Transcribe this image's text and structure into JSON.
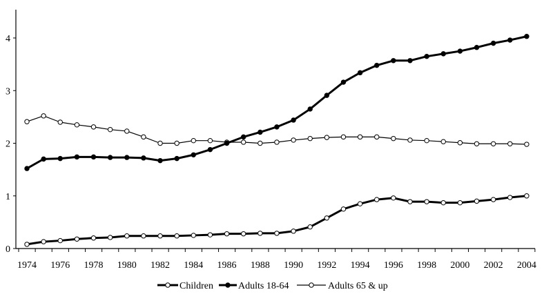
{
  "chart_data": {
    "type": "line",
    "title": "",
    "xlabel": "",
    "ylabel": "",
    "x": [
      1974,
      1975,
      1976,
      1977,
      1978,
      1979,
      1980,
      1981,
      1982,
      1983,
      1984,
      1985,
      1986,
      1987,
      1988,
      1989,
      1990,
      1991,
      1992,
      1993,
      1994,
      1995,
      1996,
      1997,
      1998,
      1999,
      2000,
      2001,
      2002,
      2003,
      2004
    ],
    "xticks": [
      "1974",
      "1976",
      "1978",
      "1980",
      "1982",
      "1984",
      "1986",
      "1988",
      "1990",
      "1992",
      "1994",
      "1996",
      "1998",
      "2000",
      "2002",
      "2004"
    ],
    "yticks": [
      "0",
      "1",
      "2",
      "3",
      "4"
    ],
    "ylim": [
      0,
      4.4
    ],
    "xlim": [
      1973.35,
      2004.5
    ],
    "grid": false,
    "legend_position": "bottom-center",
    "series": [
      {
        "name": "Children",
        "style": "thick-open",
        "values": [
          0.08,
          0.13,
          0.15,
          0.18,
          0.2,
          0.21,
          0.24,
          0.24,
          0.24,
          0.24,
          0.25,
          0.26,
          0.28,
          0.28,
          0.29,
          0.29,
          0.33,
          0.41,
          0.58,
          0.75,
          0.85,
          0.93,
          0.96,
          0.89,
          0.89,
          0.87,
          0.87,
          0.9,
          0.93,
          0.97,
          1.0
        ]
      },
      {
        "name": "Adults 18-64",
        "style": "thick-filled",
        "values": [
          1.52,
          1.7,
          1.71,
          1.74,
          1.74,
          1.73,
          1.73,
          1.72,
          1.67,
          1.71,
          1.78,
          1.88,
          2.0,
          2.12,
          2.21,
          2.31,
          2.44,
          2.65,
          2.91,
          3.16,
          3.34,
          3.48,
          3.57,
          3.57,
          3.65,
          3.7,
          3.75,
          3.82,
          3.9,
          3.96,
          4.03
        ]
      },
      {
        "name": "Adults 65 & up",
        "style": "thin-open",
        "values": [
          2.41,
          2.52,
          2.4,
          2.35,
          2.31,
          2.26,
          2.23,
          2.12,
          2.0,
          2.0,
          2.05,
          2.05,
          2.02,
          2.02,
          2.0,
          2.02,
          2.06,
          2.09,
          2.11,
          2.12,
          2.12,
          2.12,
          2.09,
          2.06,
          2.05,
          2.03,
          2.01,
          1.99,
          1.99,
          1.99,
          1.98
        ]
      }
    ]
  }
}
